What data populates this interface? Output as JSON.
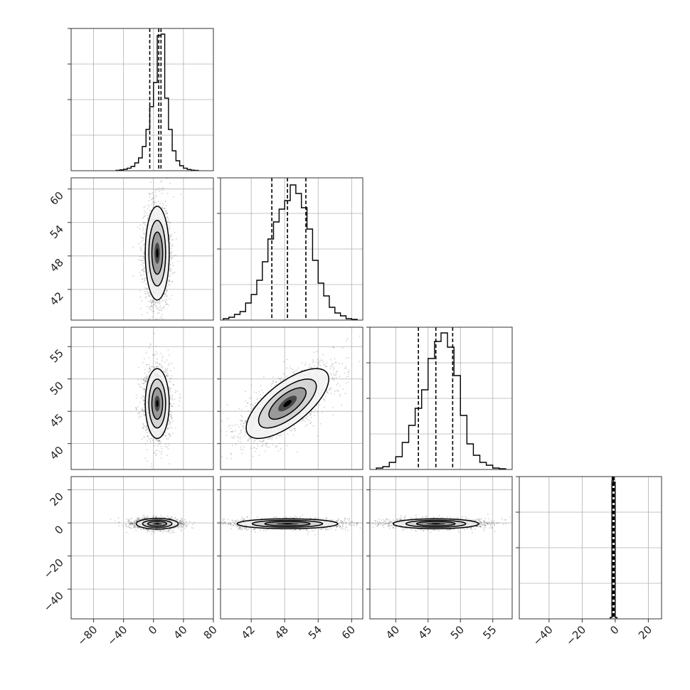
{
  "chart_data": {
    "type": "corner",
    "title": "",
    "parameters": [
      {
        "range": [
          -110,
          80
        ],
        "ticks": [
          -80,
          -40,
          0,
          40,
          80
        ],
        "tick_labels": [
          "−80",
          "−40",
          "0",
          "40",
          "80"
        ],
        "quantiles": [
          -5,
          7,
          10
        ]
      },
      {
        "range": [
          36.5,
          62.0
        ],
        "ticks": [
          42,
          48,
          54,
          60
        ],
        "tick_labels": [
          "42",
          "48",
          "54",
          "60"
        ],
        "quantiles": [
          45.7,
          48.5,
          51.8
        ]
      },
      {
        "range": [
          36.0,
          58.0
        ],
        "ticks": [
          40,
          45,
          50,
          55
        ],
        "tick_labels": [
          "40",
          "45",
          "50",
          "55"
        ],
        "quantiles": [
          43.5,
          46.2,
          48.8
        ]
      },
      {
        "range": [
          -58.0,
          28.0
        ],
        "ticks": [
          -40,
          -20,
          0,
          20
        ],
        "tick_labels": [
          "−40",
          "−20",
          "0",
          "20"
        ],
        "quantiles": [
          -1.8,
          -1.2,
          -0.7
        ]
      }
    ],
    "grid": true,
    "marginal_histograms": [
      {
        "bin_edges": [
          -50,
          -45,
          -40,
          -35,
          -30,
          -25,
          -20,
          -15,
          -10,
          -5,
          0,
          5,
          10,
          15,
          20,
          25,
          30,
          35,
          40,
          45,
          50,
          55,
          60
        ],
        "density": [
          0.003,
          0.006,
          0.01,
          0.018,
          0.03,
          0.055,
          0.09,
          0.17,
          0.29,
          0.45,
          0.62,
          0.95,
          0.96,
          0.51,
          0.29,
          0.14,
          0.07,
          0.035,
          0.018,
          0.009,
          0.004,
          0.002
        ]
      },
      {
        "bin_edges": [
          37,
          38,
          39,
          40,
          41,
          42,
          43,
          44,
          45,
          46,
          47,
          48,
          49,
          50,
          51,
          52,
          53,
          54,
          55,
          56,
          57,
          58,
          59,
          60,
          61
        ],
        "density": [
          0.01,
          0.02,
          0.04,
          0.06,
          0.12,
          0.18,
          0.28,
          0.41,
          0.57,
          0.69,
          0.78,
          0.84,
          0.95,
          0.89,
          0.79,
          0.64,
          0.42,
          0.26,
          0.17,
          0.09,
          0.05,
          0.03,
          0.01,
          0.005
        ]
      },
      {
        "bin_edges": [
          37,
          38,
          39,
          40,
          41,
          42,
          43,
          44,
          45,
          46,
          47,
          48,
          49,
          50,
          51,
          52,
          53,
          54,
          55,
          56,
          57
        ],
        "density": [
          0.01,
          0.02,
          0.05,
          0.09,
          0.19,
          0.31,
          0.43,
          0.56,
          0.78,
          0.9,
          0.96,
          0.86,
          0.66,
          0.38,
          0.18,
          0.1,
          0.05,
          0.03,
          0.01,
          0.005
        ]
      },
      {
        "bin_edges": [
          -3.0,
          -2.0,
          -1.0,
          0.0,
          1.0
        ],
        "density": [
          0.01,
          0.97,
          0.96,
          0.01
        ]
      }
    ],
    "pair_panels": [
      {
        "row": 1,
        "col": 0,
        "mean": [
          5,
          48.5
        ],
        "std": [
          8,
          4.2
        ],
        "rho": 0.0
      },
      {
        "row": 2,
        "col": 0,
        "mean": [
          5,
          46.2
        ],
        "std": [
          8,
          2.7
        ],
        "rho": 0.0
      },
      {
        "row": 2,
        "col": 1,
        "mean": [
          48.5,
          46.2
        ],
        "std": [
          3.7,
          2.7
        ],
        "rho": 0.7
      },
      {
        "row": 3,
        "col": 0,
        "mean": [
          5,
          -0.5
        ],
        "std": [
          14,
          1.6
        ],
        "rho": 0.0
      },
      {
        "row": 3,
        "col": 1,
        "mean": [
          48.5,
          -0.5
        ],
        "std": [
          4.5,
          1.5
        ],
        "rho": 0.0
      },
      {
        "row": 3,
        "col": 2,
        "mean": [
          46.2,
          -0.5
        ],
        "std": [
          3.3,
          1.5
        ],
        "rho": 0.0
      }
    ]
  }
}
